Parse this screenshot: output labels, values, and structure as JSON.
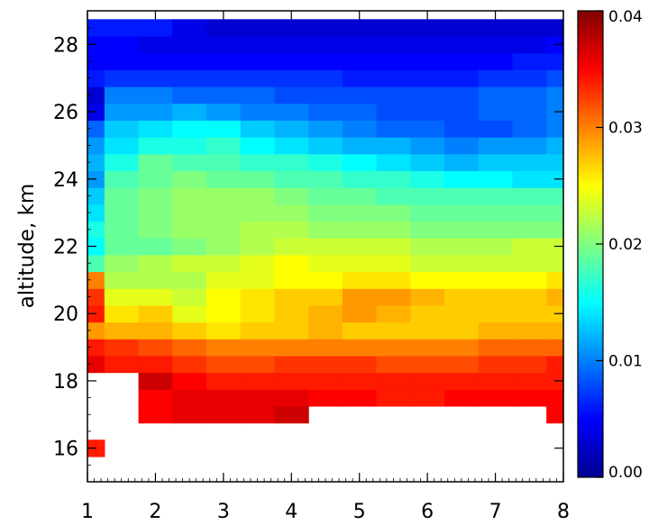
{
  "chart_data": {
    "type": "heatmap",
    "title": "",
    "xlabel": "",
    "ylabel": "altitude, km",
    "x_ticks": [
      "1",
      "2",
      "3",
      "4",
      "5",
      "6",
      "7",
      "8"
    ],
    "y_ticks": [
      "16",
      "18",
      "20",
      "22",
      "24",
      "26",
      "28"
    ],
    "xlim": [
      1,
      8
    ],
    "ylim": [
      15,
      29
    ],
    "colorbar": {
      "range": [
        0,
        0.04
      ],
      "ticks": [
        "0.00",
        "0.01",
        "0.02",
        "0.03",
        "0.04"
      ],
      "colormap": "jet"
    },
    "x": [
      1,
      1.5,
      2,
      2.5,
      3,
      3.5,
      4,
      4.5,
      5,
      5.5,
      6,
      6.5,
      7,
      7.5,
      8
    ],
    "y": [
      16,
      16.5,
      17,
      17.5,
      18,
      18.5,
      19,
      19.5,
      20,
      20.5,
      21,
      21.5,
      22,
      22.5,
      23,
      23.5,
      24,
      24.5,
      25,
      25.5,
      26,
      26.5,
      27,
      27.5,
      28,
      28.5
    ],
    "z": [
      [
        0.034,
        null,
        null,
        null,
        null,
        null,
        null,
        null,
        null,
        null,
        null,
        null,
        null,
        null,
        null
      ],
      [
        null,
        null,
        null,
        null,
        null,
        null,
        null,
        null,
        null,
        null,
        null,
        null,
        null,
        null,
        null
      ],
      [
        null,
        null,
        0.035,
        0.036,
        0.036,
        0.036,
        0.037,
        null,
        null,
        null,
        null,
        null,
        null,
        null,
        0.035
      ],
      [
        null,
        null,
        0.035,
        0.036,
        0.036,
        0.036,
        0.036,
        0.035,
        0.035,
        0.034,
        0.034,
        0.035,
        0.035,
        0.035,
        0.035
      ],
      [
        null,
        null,
        0.037,
        0.035,
        0.034,
        0.034,
        0.034,
        0.034,
        0.034,
        0.034,
        0.034,
        0.034,
        0.034,
        0.034,
        0.034
      ],
      [
        0.036,
        0.034,
        0.034,
        0.033,
        0.032,
        0.032,
        0.033,
        0.033,
        0.033,
        0.032,
        0.032,
        0.032,
        0.033,
        0.033,
        0.034
      ],
      [
        0.034,
        0.033,
        0.032,
        0.031,
        0.03,
        0.03,
        0.03,
        0.03,
        0.03,
        0.03,
        0.03,
        0.03,
        0.031,
        0.031,
        0.031
      ],
      [
        0.029,
        0.028,
        0.028,
        0.027,
        0.026,
        0.027,
        0.027,
        0.028,
        0.027,
        0.027,
        0.027,
        0.027,
        0.028,
        0.028,
        0.028
      ],
      [
        0.034,
        0.026,
        0.027,
        0.024,
        0.025,
        0.026,
        0.027,
        0.028,
        0.029,
        0.028,
        0.027,
        0.027,
        0.027,
        0.027,
        0.027
      ],
      [
        0.033,
        0.024,
        0.024,
        0.023,
        0.025,
        0.026,
        0.027,
        0.027,
        0.029,
        0.029,
        0.028,
        0.027,
        0.027,
        0.027,
        0.028
      ],
      [
        0.03,
        0.022,
        0.022,
        0.022,
        0.024,
        0.024,
        0.025,
        0.025,
        0.026,
        0.026,
        0.025,
        0.025,
        0.025,
        0.025,
        0.026
      ],
      [
        0.018,
        0.021,
        0.022,
        0.023,
        0.023,
        0.024,
        0.025,
        0.024,
        0.024,
        0.024,
        0.023,
        0.023,
        0.023,
        0.023,
        0.023
      ],
      [
        0.015,
        0.019,
        0.019,
        0.02,
        0.021,
        0.022,
        0.023,
        0.023,
        0.023,
        0.023,
        0.022,
        0.022,
        0.022,
        0.023,
        0.023
      ],
      [
        0.016,
        0.019,
        0.02,
        0.021,
        0.021,
        0.022,
        0.022,
        0.021,
        0.021,
        0.021,
        0.02,
        0.02,
        0.02,
        0.02,
        0.02
      ],
      [
        0.014,
        0.019,
        0.02,
        0.021,
        0.021,
        0.021,
        0.021,
        0.02,
        0.02,
        0.02,
        0.019,
        0.019,
        0.019,
        0.019,
        0.019
      ],
      [
        0.013,
        0.019,
        0.02,
        0.021,
        0.021,
        0.021,
        0.02,
        0.019,
        0.019,
        0.018,
        0.018,
        0.018,
        0.018,
        0.018,
        0.018
      ],
      [
        0.011,
        0.018,
        0.019,
        0.02,
        0.019,
        0.019,
        0.018,
        0.018,
        0.017,
        0.017,
        0.016,
        0.015,
        0.015,
        0.014,
        0.014
      ],
      [
        0.012,
        0.016,
        0.019,
        0.018,
        0.018,
        0.017,
        0.017,
        0.016,
        0.015,
        0.014,
        0.013,
        0.012,
        0.013,
        0.013,
        0.013
      ],
      [
        0.011,
        0.014,
        0.016,
        0.016,
        0.017,
        0.015,
        0.014,
        0.013,
        0.012,
        0.012,
        0.011,
        0.01,
        0.011,
        0.011,
        0.012
      ],
      [
        0.009,
        0.013,
        0.014,
        0.015,
        0.015,
        0.013,
        0.012,
        0.011,
        0.01,
        0.009,
        0.009,
        0.008,
        0.008,
        0.009,
        0.01
      ],
      [
        0.004,
        0.011,
        0.011,
        0.012,
        0.011,
        0.01,
        0.01,
        0.009,
        0.009,
        0.008,
        0.008,
        0.008,
        0.009,
        0.009,
        0.01
      ],
      [
        0.003,
        0.01,
        0.01,
        0.009,
        0.009,
        0.009,
        0.008,
        0.008,
        0.008,
        0.008,
        0.008,
        0.008,
        0.009,
        0.009,
        0.01
      ],
      [
        0.006,
        0.007,
        0.007,
        0.007,
        0.007,
        0.007,
        0.007,
        0.007,
        0.006,
        0.006,
        0.006,
        0.006,
        0.007,
        0.007,
        0.008
      ],
      [
        0.005,
        0.005,
        0.005,
        0.005,
        0.005,
        0.005,
        0.005,
        0.005,
        0.005,
        0.005,
        0.005,
        0.005,
        0.005,
        0.006,
        0.006
      ],
      [
        0.005,
        0.005,
        0.004,
        0.004,
        0.004,
        0.004,
        0.004,
        0.004,
        0.004,
        0.004,
        0.004,
        0.004,
        0.004,
        0.004,
        0.005
      ],
      [
        0.006,
        0.006,
        0.006,
        0.004,
        0.003,
        0.003,
        0.003,
        0.003,
        0.003,
        0.003,
        0.003,
        0.003,
        0.003,
        0.003,
        0.003
      ]
    ]
  }
}
